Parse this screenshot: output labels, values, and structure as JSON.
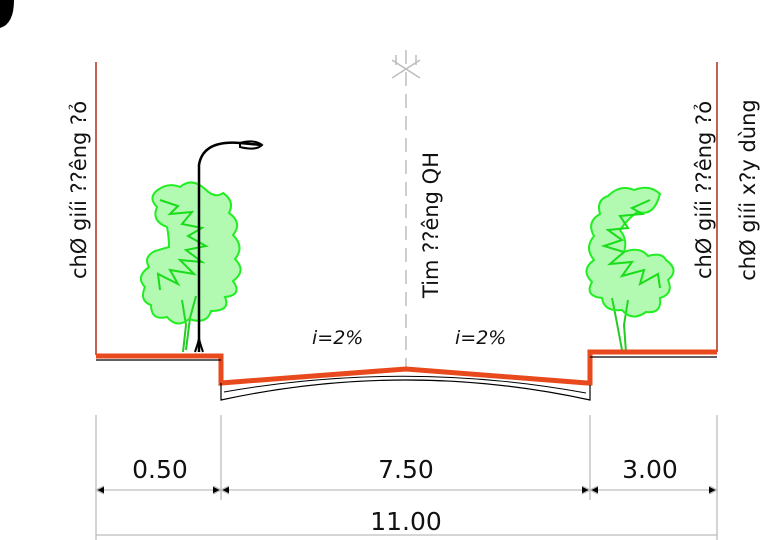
{
  "labels": {
    "left_boundary": "chØ giíi ??êng ?ỏ",
    "center_line": "Tim ??êng QH",
    "right_boundary": "chØ giíi ??êng ?ỏ",
    "building_line": "chØ giíi x?y dùng"
  },
  "slopes": {
    "left": "i=2%",
    "right": "i=2%"
  },
  "dimensions": {
    "left_sidewalk": "0.50",
    "carriageway": "7.50",
    "right_sidewalk": "3.00",
    "total": "11.00"
  },
  "colors": {
    "pavement": "#e8491d",
    "tree": "#22ee22",
    "line": "#000000",
    "dimension_line": "#bdbdbd"
  }
}
